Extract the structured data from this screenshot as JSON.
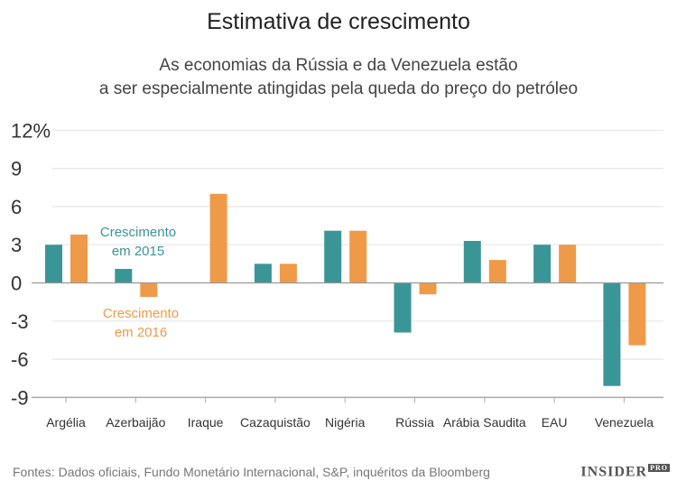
{
  "chart_data": {
    "type": "bar",
    "title": "Estimativa de crescimento",
    "subtitle": [
      "As economias da Rússia e da Venezuela estão",
      "a ser especialmente atingidas pela queda do preço do petróleo"
    ],
    "categories": [
      "Argélia",
      "Azerbaijão",
      "Iraque",
      "Cazaquistão",
      "Nigéria",
      "Rússia",
      "Arábia Saudita",
      "EAU",
      "Venezuela"
    ],
    "series": [
      {
        "name": "Crescimento em 2015",
        "label_lines": [
          "Crescimento",
          "em 2015"
        ],
        "color": "#3a9597",
        "values": [
          3.0,
          1.1,
          null,
          1.5,
          4.1,
          -3.9,
          3.3,
          3.0,
          -8.1
        ]
      },
      {
        "name": "Crescimento em 2016",
        "label_lines": [
          "Crescimento",
          "em 2016"
        ],
        "color": "#ee9a48",
        "values": [
          3.8,
          -1.1,
          7.0,
          1.5,
          4.1,
          -0.9,
          1.8,
          3.0,
          -4.9
        ]
      }
    ],
    "ylim": [
      -9,
      12
    ],
    "yticks": [
      12,
      9,
      6,
      3,
      0,
      -3,
      -6,
      -9
    ],
    "ytick_labels": [
      "12%",
      "9",
      "6",
      "3",
      "0",
      "-3",
      "-6",
      "-9"
    ],
    "grid": true,
    "legend": "inline labels"
  },
  "footer": {
    "source": "Fontes: Dados oficiais, Fundo Monetário Internacional, S&P, inquéritos da Bloomberg",
    "logo": "INSIDER",
    "logo_sup": "PRO"
  }
}
